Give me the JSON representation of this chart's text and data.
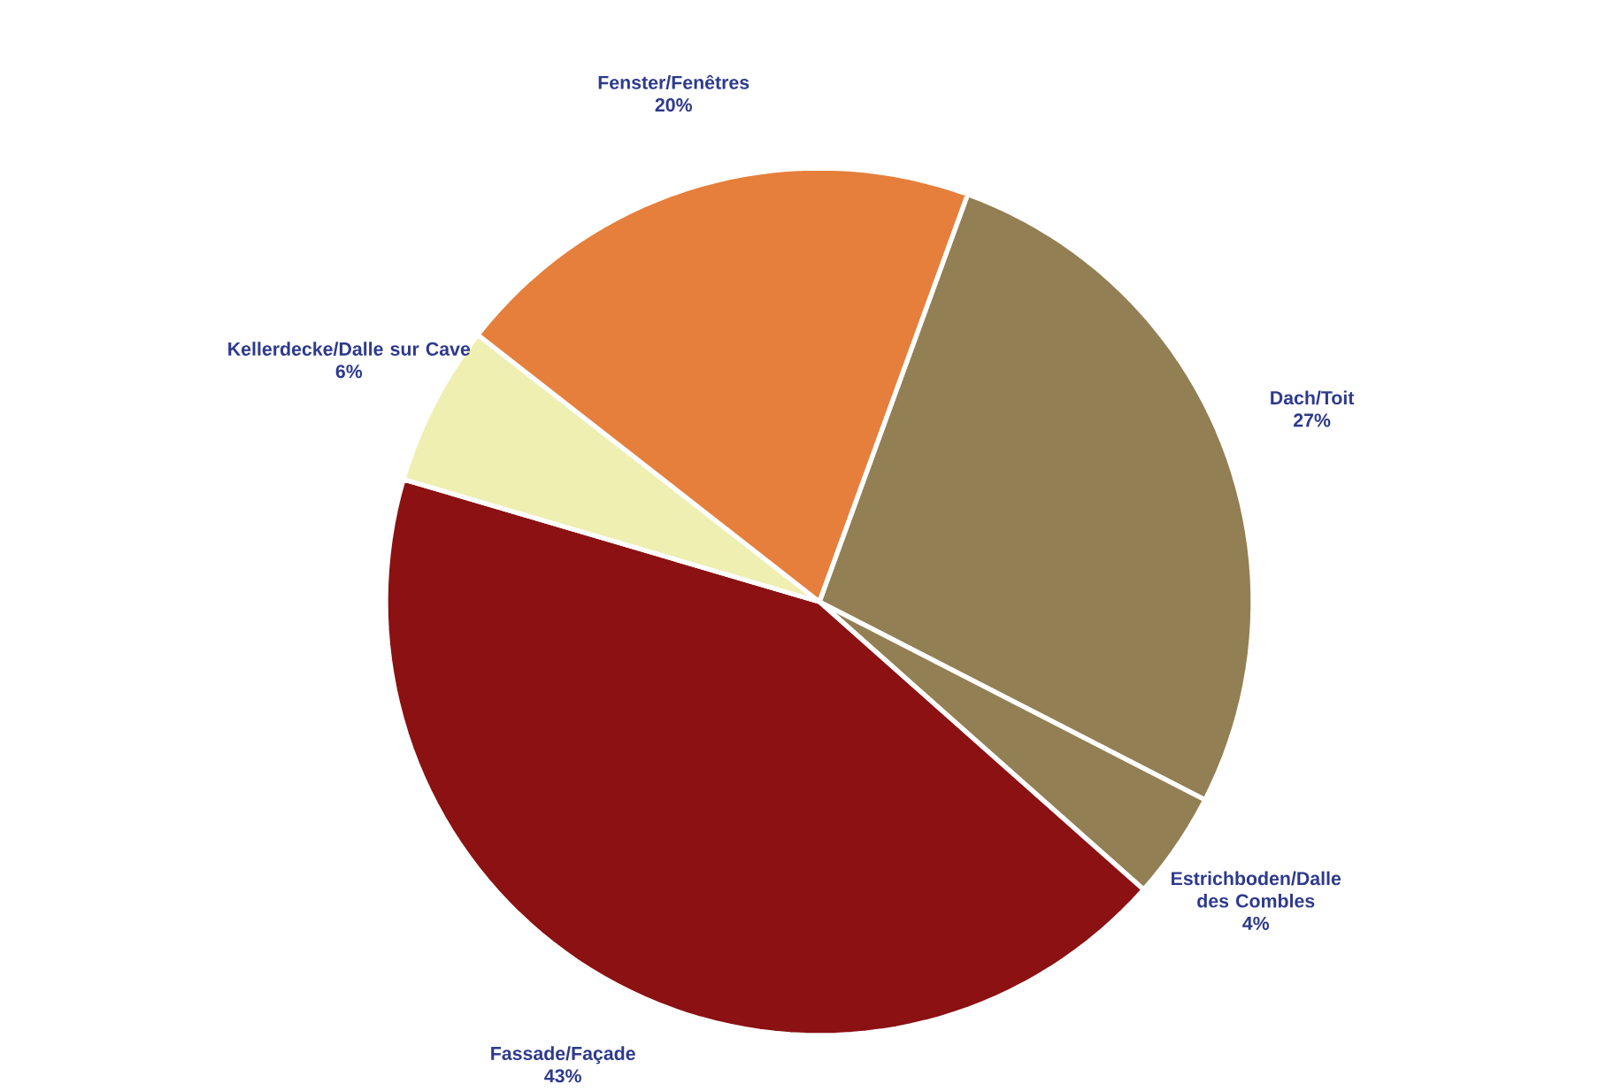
{
  "chart_data": {
    "type": "pie",
    "categories": [
      "Dach/Toit",
      "Estrichboden/Dalle des Combles",
      "Fassade/Façade",
      "Kellerdecke/Dalle sur Cave",
      "Fenster/Fenêtres"
    ],
    "values": [
      27,
      4,
      43,
      6,
      20
    ],
    "value_labels": [
      "27%",
      "4%",
      "43%",
      "6%",
      "20%"
    ],
    "colors": [
      "#937f54",
      "#937f54",
      "#8b1113",
      "#eeefb0",
      "#e57f3b"
    ]
  }
}
